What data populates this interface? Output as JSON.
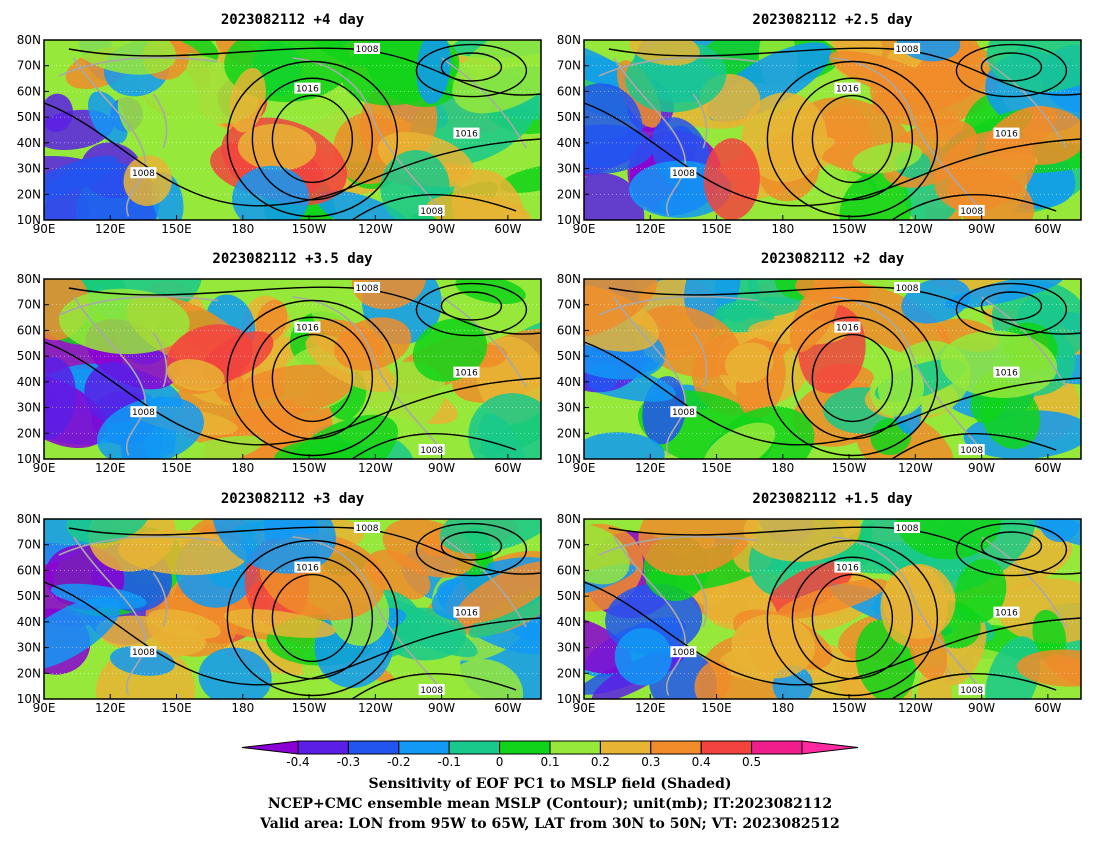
{
  "panels": [
    {
      "title": "2023082112  +4 day",
      "column": "left",
      "row": 1
    },
    {
      "title": "2023082112  +2.5 day",
      "column": "right",
      "row": 1
    },
    {
      "title": "2023082112  +3.5 day",
      "column": "left",
      "row": 2
    },
    {
      "title": "2023082112  +2 day",
      "column": "right",
      "row": 2
    },
    {
      "title": "2023082112  +3 day",
      "column": "left",
      "row": 3
    },
    {
      "title": "2023082112  +1.5 day",
      "column": "right",
      "row": 3
    }
  ],
  "lon_ticks": [
    "90E",
    "120E",
    "150E",
    "180",
    "150W",
    "120W",
    "90W",
    "60W"
  ],
  "lat_ticks": [
    "10N",
    "20N",
    "30N",
    "40N",
    "50N",
    "60N",
    "70N",
    "80N"
  ],
  "contour_labels": [
    "1008",
    "1016",
    "1016",
    "1008",
    "1008"
  ],
  "colorbar": {
    "colors": [
      "#8a00d4",
      "#5b1ee6",
      "#2255f0",
      "#1199f5",
      "#19c98b",
      "#11d41a",
      "#96e83a",
      "#e8b434",
      "#f08c2a",
      "#f2433f",
      "#f01e8c",
      "#ff2aa0"
    ],
    "labels": [
      "-0.4",
      "-0.3",
      "-0.2",
      "-0.1",
      "0",
      "0.1",
      "0.2",
      "0.3",
      "0.4",
      "0.5"
    ]
  },
  "captions": [
    "Sensitivity of EOF PC1 to MSLP field (Shaded)",
    "NCEP+CMC ensemble mean MSLP (Contour); unit(mb); IT:2023082112",
    "Valid area: LON from 95W to 65W, LAT from 30N to 50N; VT: 2023082512"
  ]
}
